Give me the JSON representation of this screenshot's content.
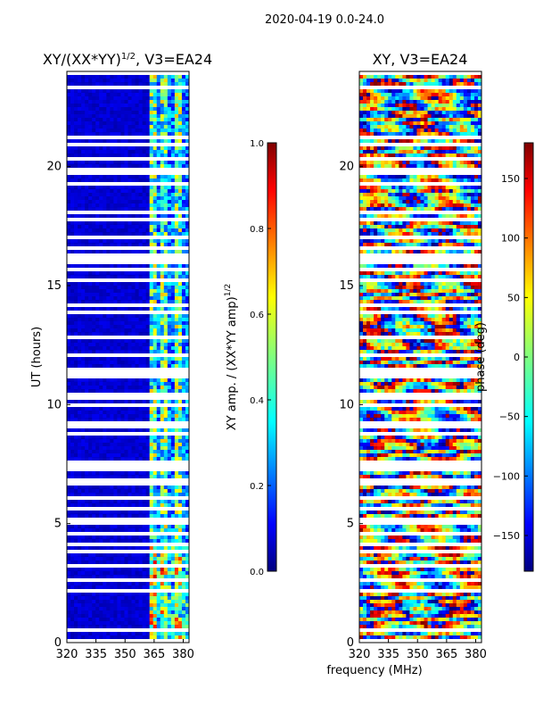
{
  "suptitle": "2020-04-19 0.0-24.0",
  "shared": {
    "xlabel": "frequency (MHz)",
    "ylabel": "UT (hours)"
  },
  "chart_data": [
    {
      "type": "heatmap",
      "title_main": "XY/(XX*YY)",
      "title_exp": "1/2",
      "title_suffix": ", V3=EA24",
      "x_ticks": [
        320,
        335,
        350,
        365,
        380
      ],
      "xlim": [
        320,
        383
      ],
      "y_ticks": [
        0,
        5,
        10,
        15,
        20
      ],
      "ylim": [
        0,
        24
      ],
      "colorbar": {
        "label_main": "XY amp. / (XX*YY amp)",
        "label_exp": "1/2",
        "range": [
          0.0,
          1.0
        ],
        "ticks": [
          "0.0",
          "0.2",
          "0.4",
          "0.6",
          "0.8",
          "1.0"
        ],
        "colormap": "jet"
      },
      "description_values": {
        "low_band_level": 0.08,
        "high_band_start_mhz": 362,
        "high_band_level": 0.45
      }
    },
    {
      "type": "heatmap",
      "title": "XY, V3=EA24",
      "x_ticks": [
        320,
        335,
        350,
        365,
        380
      ],
      "xlim": [
        320,
        383
      ],
      "y_ticks": [
        0,
        5,
        10,
        15,
        20
      ],
      "ylim": [
        0,
        24
      ],
      "colorbar": {
        "label": "phase (deg)",
        "range": [
          -180,
          180
        ],
        "ticks": [
          "150",
          "100",
          "50",
          "0",
          "−50",
          "−100",
          "−150"
        ],
        "tick_values": [
          150,
          100,
          50,
          0,
          -50,
          -100,
          -150
        ],
        "colormap": "jet"
      }
    }
  ],
  "colors": {
    "jet": [
      "#00007f",
      "#0000ff",
      "#007fff",
      "#00ffff",
      "#7fff7f",
      "#ffff00",
      "#ff7f00",
      "#ff0000",
      "#7f0000"
    ],
    "background": "#ffffff",
    "axis": "#000000"
  }
}
